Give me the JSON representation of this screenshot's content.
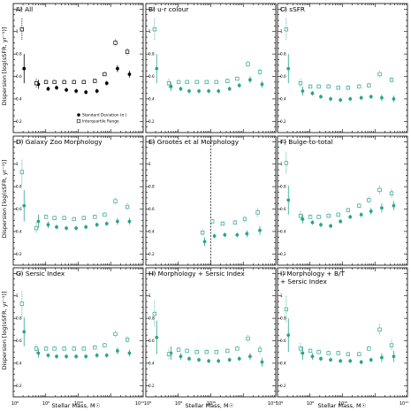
{
  "figure": {
    "ylabel": "Dispersion [log(sSFR, yr⁻¹)]",
    "xlabel": "Stellar Mass, M☉",
    "x_tick_labels": [
      "10⁹",
      "10⁹",
      "10¹⁰",
      "10¹¹"
    ],
    "legend": {
      "std_label": "Standard Deviation (σ )",
      "iqr_label": "Interquartile Range"
    },
    "colors": {
      "panelA": "#000000",
      "others": "#2aa58c",
      "axis": "#000000"
    }
  },
  "chart_data": [
    {
      "type": "scatter",
      "panel": "A",
      "title": "A) All",
      "x_scale": "log",
      "xlim": [
        10000000.0,
        100000000000.0
      ],
      "ylim": [
        0.1,
        1.25
      ],
      "series": [
        {
          "name": "Standard Deviation (σ )",
          "style": "filled",
          "x": [
            20000000.0,
            55000000.0,
            110000000.0,
            200000000.0,
            400000000.0,
            800000000.0,
            1600000000.0,
            3500000000.0,
            7000000000.0,
            15000000000.0,
            35000000000.0
          ],
          "y": [
            0.67,
            0.53,
            0.49,
            0.5,
            0.48,
            0.47,
            0.46,
            0.47,
            0.54,
            0.67,
            0.62
          ],
          "err": [
            0.13,
            0.04,
            0.02,
            0.02,
            0.02,
            0.02,
            0.02,
            0.02,
            0.02,
            0.03,
            0.03
          ]
        },
        {
          "name": "Interquartile Range",
          "style": "open",
          "x": [
            20000000.0,
            55000000.0,
            110000000.0,
            200000000.0,
            400000000.0,
            800000000.0,
            1600000000.0,
            3500000000.0,
            7000000000.0,
            15000000000.0,
            35000000000.0
          ],
          "y": [
            1.02,
            0.54,
            0.55,
            0.55,
            0.55,
            0.55,
            0.55,
            0.56,
            0.62,
            0.9,
            0.82
          ],
          "err": [
            0.1,
            0.04,
            0.02,
            0.02,
            0.02,
            0.02,
            0.02,
            0.02,
            0.02,
            0.03,
            0.03
          ]
        }
      ]
    },
    {
      "type": "scatter",
      "panel": "B",
      "title": "B) u-r colour",
      "x_scale": "log",
      "xlim": [
        10000000.0,
        100000000000.0
      ],
      "ylim": [
        0.1,
        1.25
      ],
      "series": [
        {
          "style": "filled",
          "x": [
            20000000.0,
            55000000.0,
            110000000.0,
            200000000.0,
            400000000.0,
            800000000.0,
            1600000000.0,
            3500000000.0,
            7000000000.0,
            15000000000.0,
            35000000000.0
          ],
          "y": [
            0.67,
            0.51,
            0.49,
            0.47,
            0.47,
            0.47,
            0.47,
            0.49,
            0.52,
            0.57,
            0.53
          ],
          "err": [
            0.13,
            0.04,
            0.02,
            0.02,
            0.02,
            0.02,
            0.02,
            0.02,
            0.02,
            0.03,
            0.03
          ]
        },
        {
          "style": "open",
          "x": [
            20000000.0,
            55000000.0,
            110000000.0,
            200000000.0,
            400000000.0,
            800000000.0,
            1600000000.0,
            3500000000.0,
            7000000000.0,
            15000000000.0,
            35000000000.0
          ],
          "y": [
            1.02,
            0.54,
            0.55,
            0.55,
            0.55,
            0.55,
            0.55,
            0.56,
            0.58,
            0.71,
            0.64
          ],
          "err": [
            0.1,
            0.04,
            0.02,
            0.02,
            0.02,
            0.02,
            0.02,
            0.02,
            0.02,
            0.03,
            0.03
          ]
        }
      ]
    },
    {
      "type": "scatter",
      "panel": "C",
      "title": "C) sSFR",
      "x_scale": "log",
      "xlim": [
        10000000.0,
        100000000000.0
      ],
      "ylim": [
        0.1,
        1.25
      ],
      "series": [
        {
          "style": "filled",
          "x": [
            20000000.0,
            55000000.0,
            110000000.0,
            200000000.0,
            400000000.0,
            800000000.0,
            1600000000.0,
            3500000000.0,
            7000000000.0,
            15000000000.0,
            35000000000.0
          ],
          "y": [
            0.67,
            0.47,
            0.45,
            0.42,
            0.4,
            0.39,
            0.4,
            0.41,
            0.42,
            0.41,
            0.4
          ],
          "err": [
            0.13,
            0.04,
            0.02,
            0.02,
            0.02,
            0.02,
            0.02,
            0.02,
            0.02,
            0.03,
            0.03
          ]
        },
        {
          "style": "open",
          "x": [
            20000000.0,
            55000000.0,
            110000000.0,
            200000000.0,
            400000000.0,
            800000000.0,
            1600000000.0,
            3500000000.0,
            7000000000.0,
            15000000000.0,
            35000000000.0
          ],
          "y": [
            1.02,
            0.54,
            0.51,
            0.51,
            0.51,
            0.5,
            0.5,
            0.51,
            0.52,
            0.62,
            0.57
          ],
          "err": [
            0.1,
            0.04,
            0.02,
            0.02,
            0.02,
            0.02,
            0.02,
            0.02,
            0.02,
            0.03,
            0.03
          ]
        }
      ]
    },
    {
      "type": "scatter",
      "panel": "D",
      "title": "D) Galaxy Zoo Morphology",
      "x_scale": "log",
      "xlim": [
        10000000.0,
        100000000000.0
      ],
      "ylim": [
        0.1,
        1.25
      ],
      "series": [
        {
          "style": "filled",
          "x": [
            20000000.0,
            55000000.0,
            110000000.0,
            200000000.0,
            400000000.0,
            800000000.0,
            1600000000.0,
            3500000000.0,
            7000000000.0,
            15000000000.0,
            35000000000.0
          ],
          "y": [
            0.63,
            0.49,
            0.46,
            0.44,
            0.43,
            0.43,
            0.44,
            0.46,
            0.47,
            0.49,
            0.49
          ],
          "err": [
            0.14,
            0.06,
            0.03,
            0.02,
            0.02,
            0.02,
            0.02,
            0.02,
            0.02,
            0.03,
            0.03
          ]
        },
        {
          "style": "open",
          "x": [
            20000000.0,
            55000000.0,
            110000000.0,
            200000000.0,
            400000000.0,
            800000000.0,
            1600000000.0,
            3500000000.0,
            7000000000.0,
            15000000000.0,
            35000000000.0
          ],
          "y": [
            0.93,
            0.43,
            0.53,
            0.52,
            0.52,
            0.51,
            0.52,
            0.53,
            0.55,
            0.67,
            0.62
          ],
          "err": [
            0.11,
            0.05,
            0.02,
            0.02,
            0.02,
            0.02,
            0.02,
            0.02,
            0.02,
            0.03,
            0.03
          ]
        }
      ]
    },
    {
      "type": "scatter",
      "panel": "E",
      "title": "E) Grootes et al Morphology",
      "x_scale": "log",
      "xlim": [
        10000000.0,
        100000000000.0
      ],
      "ylim": [
        0.1,
        1.25
      ],
      "series": [
        {
          "style": "filled",
          "x": [
            600000000.0,
            1200000000.0,
            2500000000.0,
            6000000000.0,
            12000000000.0,
            30000000000.0
          ],
          "y": [
            0.31,
            0.36,
            0.37,
            0.37,
            0.38,
            0.41
          ],
          "err": [
            0.04,
            0.02,
            0.02,
            0.02,
            0.03,
            0.04
          ]
        },
        {
          "style": "open",
          "x": [
            600000000.0,
            1200000000.0,
            2500000000.0,
            6000000000.0,
            12000000000.0,
            30000000000.0
          ],
          "y": [
            0.39,
            0.49,
            0.47,
            0.48,
            0.51,
            0.57
          ],
          "err": [
            0.03,
            0.02,
            0.02,
            0.02,
            0.03,
            0.04
          ]
        }
      ]
    },
    {
      "type": "scatter",
      "panel": "F",
      "title": "F) Bulge-to-total",
      "x_scale": "log",
      "xlim": [
        10000000.0,
        100000000000.0
      ],
      "ylim": [
        0.1,
        1.25
      ],
      "series": [
        {
          "style": "filled",
          "x": [
            20000000.0,
            55000000.0,
            110000000.0,
            200000000.0,
            400000000.0,
            800000000.0,
            1600000000.0,
            3500000000.0,
            7000000000.0,
            15000000000.0,
            35000000000.0
          ],
          "y": [
            0.68,
            0.51,
            0.48,
            0.46,
            0.45,
            0.49,
            0.53,
            0.55,
            0.58,
            0.61,
            0.63
          ],
          "err": [
            0.13,
            0.04,
            0.02,
            0.02,
            0.02,
            0.02,
            0.02,
            0.02,
            0.03,
            0.04,
            0.04
          ]
        },
        {
          "style": "open",
          "x": [
            20000000.0,
            55000000.0,
            110000000.0,
            200000000.0,
            400000000.0,
            800000000.0,
            1600000000.0,
            3500000000.0,
            7000000000.0,
            15000000000.0,
            35000000000.0
          ],
          "y": [
            1.01,
            0.54,
            0.53,
            0.53,
            0.54,
            0.55,
            0.59,
            0.63,
            0.68,
            0.77,
            0.74
          ],
          "err": [
            0.1,
            0.04,
            0.02,
            0.02,
            0.02,
            0.02,
            0.02,
            0.02,
            0.03,
            0.04,
            0.04
          ]
        }
      ]
    },
    {
      "type": "scatter",
      "panel": "G",
      "title": "G) Sersic Index",
      "x_scale": "log",
      "xlim": [
        10000000.0,
        100000000000.0
      ],
      "ylim": [
        0.1,
        1.25
      ],
      "series": [
        {
          "style": "filled",
          "x": [
            20000000.0,
            55000000.0,
            110000000.0,
            200000000.0,
            400000000.0,
            800000000.0,
            1600000000.0,
            3500000000.0,
            7000000000.0,
            15000000000.0,
            35000000000.0
          ],
          "y": [
            0.68,
            0.49,
            0.47,
            0.46,
            0.46,
            0.46,
            0.46,
            0.47,
            0.47,
            0.51,
            0.49
          ],
          "err": [
            0.13,
            0.04,
            0.02,
            0.02,
            0.02,
            0.02,
            0.02,
            0.02,
            0.02,
            0.03,
            0.03
          ]
        },
        {
          "style": "open",
          "x": [
            20000000.0,
            55000000.0,
            110000000.0,
            200000000.0,
            400000000.0,
            800000000.0,
            1600000000.0,
            3500000000.0,
            7000000000.0,
            15000000000.0,
            35000000000.0
          ],
          "y": [
            0.93,
            0.53,
            0.53,
            0.53,
            0.53,
            0.53,
            0.53,
            0.54,
            0.56,
            0.66,
            0.61
          ],
          "err": [
            0.11,
            0.04,
            0.02,
            0.02,
            0.02,
            0.02,
            0.02,
            0.02,
            0.02,
            0.03,
            0.03
          ]
        }
      ]
    },
    {
      "type": "scatter",
      "panel": "H",
      "title": "H) Morphology + Sersic Index",
      "x_scale": "log",
      "xlim": [
        10000000.0,
        100000000000.0
      ],
      "ylim": [
        0.1,
        1.25
      ],
      "series": [
        {
          "style": "filled",
          "x": [
            20000000.0,
            55000000.0,
            110000000.0,
            200000000.0,
            400000000.0,
            800000000.0,
            1600000000.0,
            3500000000.0,
            7000000000.0,
            15000000000.0,
            35000000000.0
          ],
          "y": [
            0.63,
            0.49,
            0.46,
            0.44,
            0.43,
            0.42,
            0.42,
            0.43,
            0.44,
            0.46,
            0.41
          ],
          "err": [
            0.15,
            0.06,
            0.03,
            0.02,
            0.02,
            0.02,
            0.02,
            0.02,
            0.02,
            0.03,
            0.04
          ]
        },
        {
          "style": "open",
          "x": [
            20000000.0,
            55000000.0,
            110000000.0,
            200000000.0,
            400000000.0,
            800000000.0,
            1600000000.0,
            3500000000.0,
            7000000000.0,
            15000000000.0,
            35000000000.0
          ],
          "y": [
            0.84,
            0.48,
            0.52,
            0.51,
            0.5,
            0.5,
            0.5,
            0.51,
            0.53,
            0.62,
            0.52
          ],
          "err": [
            0.12,
            0.05,
            0.02,
            0.02,
            0.02,
            0.02,
            0.02,
            0.02,
            0.02,
            0.03,
            0.04
          ]
        }
      ]
    },
    {
      "type": "scatter",
      "panel": "I",
      "title": "I) Morphology + B/T + Sersic Index",
      "title_lines": [
        "I) Morphology + B/T",
        "+ Sersic Index"
      ],
      "x_scale": "log",
      "xlim": [
        10000000.0,
        100000000000.0
      ],
      "ylim": [
        0.1,
        1.25
      ],
      "series": [
        {
          "style": "filled",
          "x": [
            20000000.0,
            55000000.0,
            110000000.0,
            200000000.0,
            400000000.0,
            800000000.0,
            1600000000.0,
            3500000000.0,
            7000000000.0,
            15000000000.0,
            35000000000.0
          ],
          "y": [
            0.65,
            0.49,
            0.46,
            0.44,
            0.43,
            0.42,
            0.42,
            0.41,
            0.43,
            0.45,
            0.46
          ],
          "err": [
            0.15,
            0.06,
            0.03,
            0.02,
            0.02,
            0.02,
            0.02,
            0.02,
            0.02,
            0.04,
            0.05
          ]
        },
        {
          "style": "open",
          "x": [
            20000000.0,
            55000000.0,
            110000000.0,
            200000000.0,
            400000000.0,
            800000000.0,
            1600000000.0,
            3500000000.0,
            7000000000.0,
            15000000000.0,
            35000000000.0
          ],
          "y": [
            0.88,
            0.53,
            0.51,
            0.5,
            0.49,
            0.49,
            0.48,
            0.48,
            0.53,
            0.7,
            0.56
          ],
          "err": [
            0.12,
            0.05,
            0.02,
            0.02,
            0.02,
            0.02,
            0.02,
            0.02,
            0.02,
            0.05,
            0.05
          ]
        }
      ]
    }
  ]
}
